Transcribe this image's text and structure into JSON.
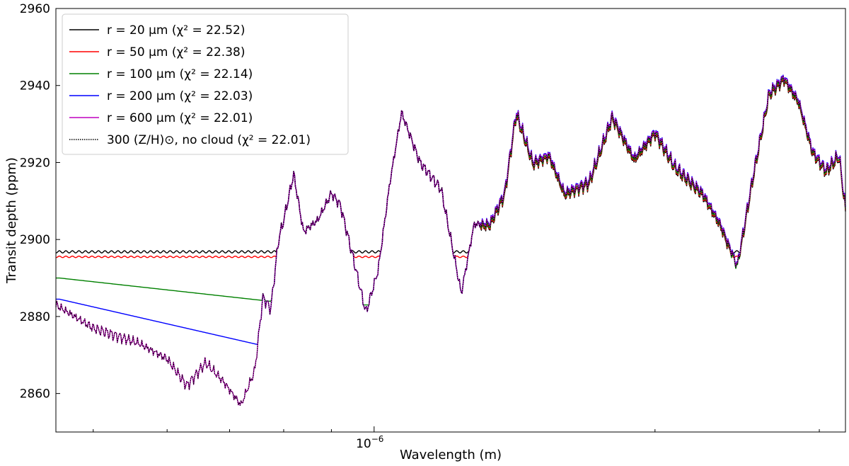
{
  "chart_data": {
    "type": "line",
    "title": "",
    "xlabel": "Wavelength (m)",
    "ylabel": "Transit depth (ppm)",
    "xscale": "log",
    "xlim": [
      4.56e-07,
      3.2e-06
    ],
    "ylim": [
      2850,
      2960
    ],
    "yticks": [
      "2860",
      "2880",
      "2900",
      "2920",
      "2940",
      "2960"
    ],
    "xtick_major_label": {
      "base": "10",
      "exp": "−6",
      "value": 1e-06
    },
    "xtick_minor_values": [
      5e-07,
      6e-07,
      7e-07,
      8e-07,
      9e-07,
      2e-06,
      3e-06
    ],
    "grid": false,
    "legend_position": "top-left",
    "colors": {
      "r20": "#000000",
      "r50": "#ff0000",
      "r100": "#008000",
      "r200": "#0000ff",
      "r600": "#bf00bf",
      "nocloud": "#000000"
    },
    "legend": [
      {
        "key": "r20",
        "label": "r = 20 μm (χ² = 22.52)",
        "style": "solid"
      },
      {
        "key": "r50",
        "label": "r = 50 μm (χ² = 22.38)",
        "style": "solid"
      },
      {
        "key": "r100",
        "label": "r = 100 μm (χ² = 22.14)",
        "style": "solid"
      },
      {
        "key": "r200",
        "label": "r = 200 μm (χ² = 22.03)",
        "style": "solid"
      },
      {
        "key": "r600",
        "label": "r = 600 μm (χ² = 22.01)",
        "style": "solid"
      },
      {
        "key": "nocloud",
        "label": "300 (Z/H)⊙, no cloud (χ² = 22.01)",
        "style": "dotted"
      }
    ],
    "spectrum_wavelength_m": [
      4.56e-07,
      5e-07,
      5.6e-07,
      6e-07,
      6.3e-07,
      6.6e-07,
      6.9e-07,
      7.2e-07,
      7.45e-07,
      7.6e-07,
      7.75e-07,
      7.9e-07,
      8e-07,
      8.2e-07,
      8.4e-07,
      8.7e-07,
      9e-07,
      9.2e-07,
      9.5e-07,
      9.8e-07,
      1.01e-06,
      1.04e-06,
      1.07e-06,
      1.12e-06,
      1.18e-06,
      1.24e-06,
      1.28e-06,
      1.33e-06,
      1.38e-06,
      1.42e-06,
      1.48e-06,
      1.54e-06,
      1.6e-06,
      1.7e-06,
      1.8e-06,
      1.9e-06,
      2e-06,
      2.1e-06,
      2.25e-06,
      2.35e-06,
      2.45e-06,
      2.55e-06,
      2.65e-06,
      2.75e-06,
      2.85e-06,
      2.95e-06,
      3.05e-06,
      3.15e-06,
      3.2e-06
    ],
    "spectrum_nocloud_ppm": [
      2883,
      2877,
      2873,
      2869,
      2862,
      2868,
      2863,
      2857,
      2866,
      2885,
      2882,
      2900,
      2905,
      2917,
      2902,
      2905,
      2912,
      2909,
      2895,
      2881,
      2892,
      2915,
      2933,
      2920,
      2913,
      2886,
      2904,
      2904,
      2912,
      2933,
      2920,
      2922,
      2912,
      2915,
      2932,
      2921,
      2928,
      2919,
      2912,
      2904,
      2893,
      2917,
      2938,
      2942,
      2936,
      2923,
      2918,
      2922,
      2908
    ],
    "series": [
      {
        "key": "r20",
        "name": "r = 20 μm (χ² = 22.52)",
        "flat_ppm": 2896.8
      },
      {
        "key": "r50",
        "name": "r = 50 μm (χ² = 22.38)",
        "flat_ppm": 2895.5
      },
      {
        "key": "r100",
        "name": "r = 100 μm (χ² = 22.14)",
        "start_ppm": 2890,
        "end_ppm": 2883
      },
      {
        "key": "r200",
        "name": "r = 200 μm (χ² = 22.03)",
        "start_ppm": 2884.5,
        "end_ppm": 2870
      },
      {
        "key": "r600",
        "name": "r = 600 μm (χ² = 22.01)"
      },
      {
        "key": "nocloud",
        "name": "300 (Z/H)⊙, no cloud (χ² = 22.01)"
      }
    ]
  }
}
